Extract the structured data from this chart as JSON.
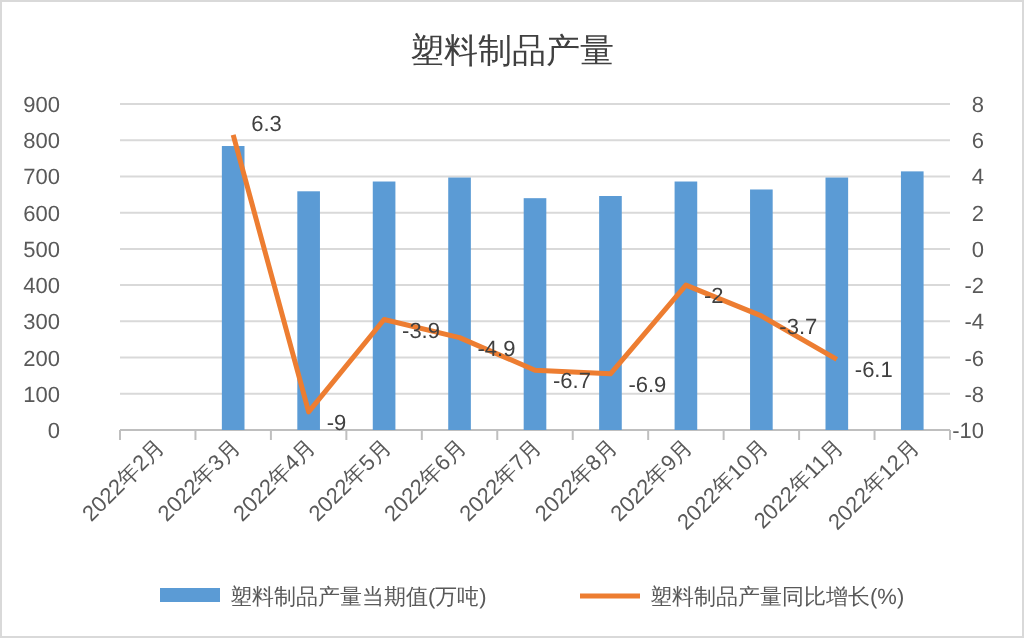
{
  "chart_data": {
    "type": "bar",
    "title": "塑料制品产量",
    "categories": [
      "2022年2月",
      "2022年3月",
      "2022年4月",
      "2022年5月",
      "2022年6月",
      "2022年7月",
      "2022年8月",
      "2022年9月",
      "2022年10月",
      "2022年11月",
      "2022年12月"
    ],
    "series": [
      {
        "name": "塑料制品产量当期值(万吨)",
        "color": "#5b9bd5",
        "values": [
          null,
          784,
          659,
          686,
          697,
          640,
          646,
          686,
          664,
          697,
          714
        ]
      },
      {
        "name": "塑料制品产量同比增长(%)",
        "type": "line",
        "axis": "y2",
        "color": "#ed7d31",
        "data_labels": true,
        "values": [
          null,
          6.3,
          -9,
          -3.9,
          -4.9,
          -6.7,
          -6.9,
          -2,
          -3.7,
          -6.1,
          null
        ]
      }
    ],
    "ylim": [
      0,
      900
    ],
    "yticks": [
      0,
      100,
      200,
      300,
      400,
      500,
      600,
      700,
      800,
      900
    ],
    "y2lim": [
      -10,
      8
    ],
    "y2ticks": [
      -10,
      -8,
      -6,
      -4,
      -2,
      0,
      2,
      4,
      6,
      8
    ],
    "grid": "y",
    "legend": "bottom",
    "marker": "none"
  }
}
